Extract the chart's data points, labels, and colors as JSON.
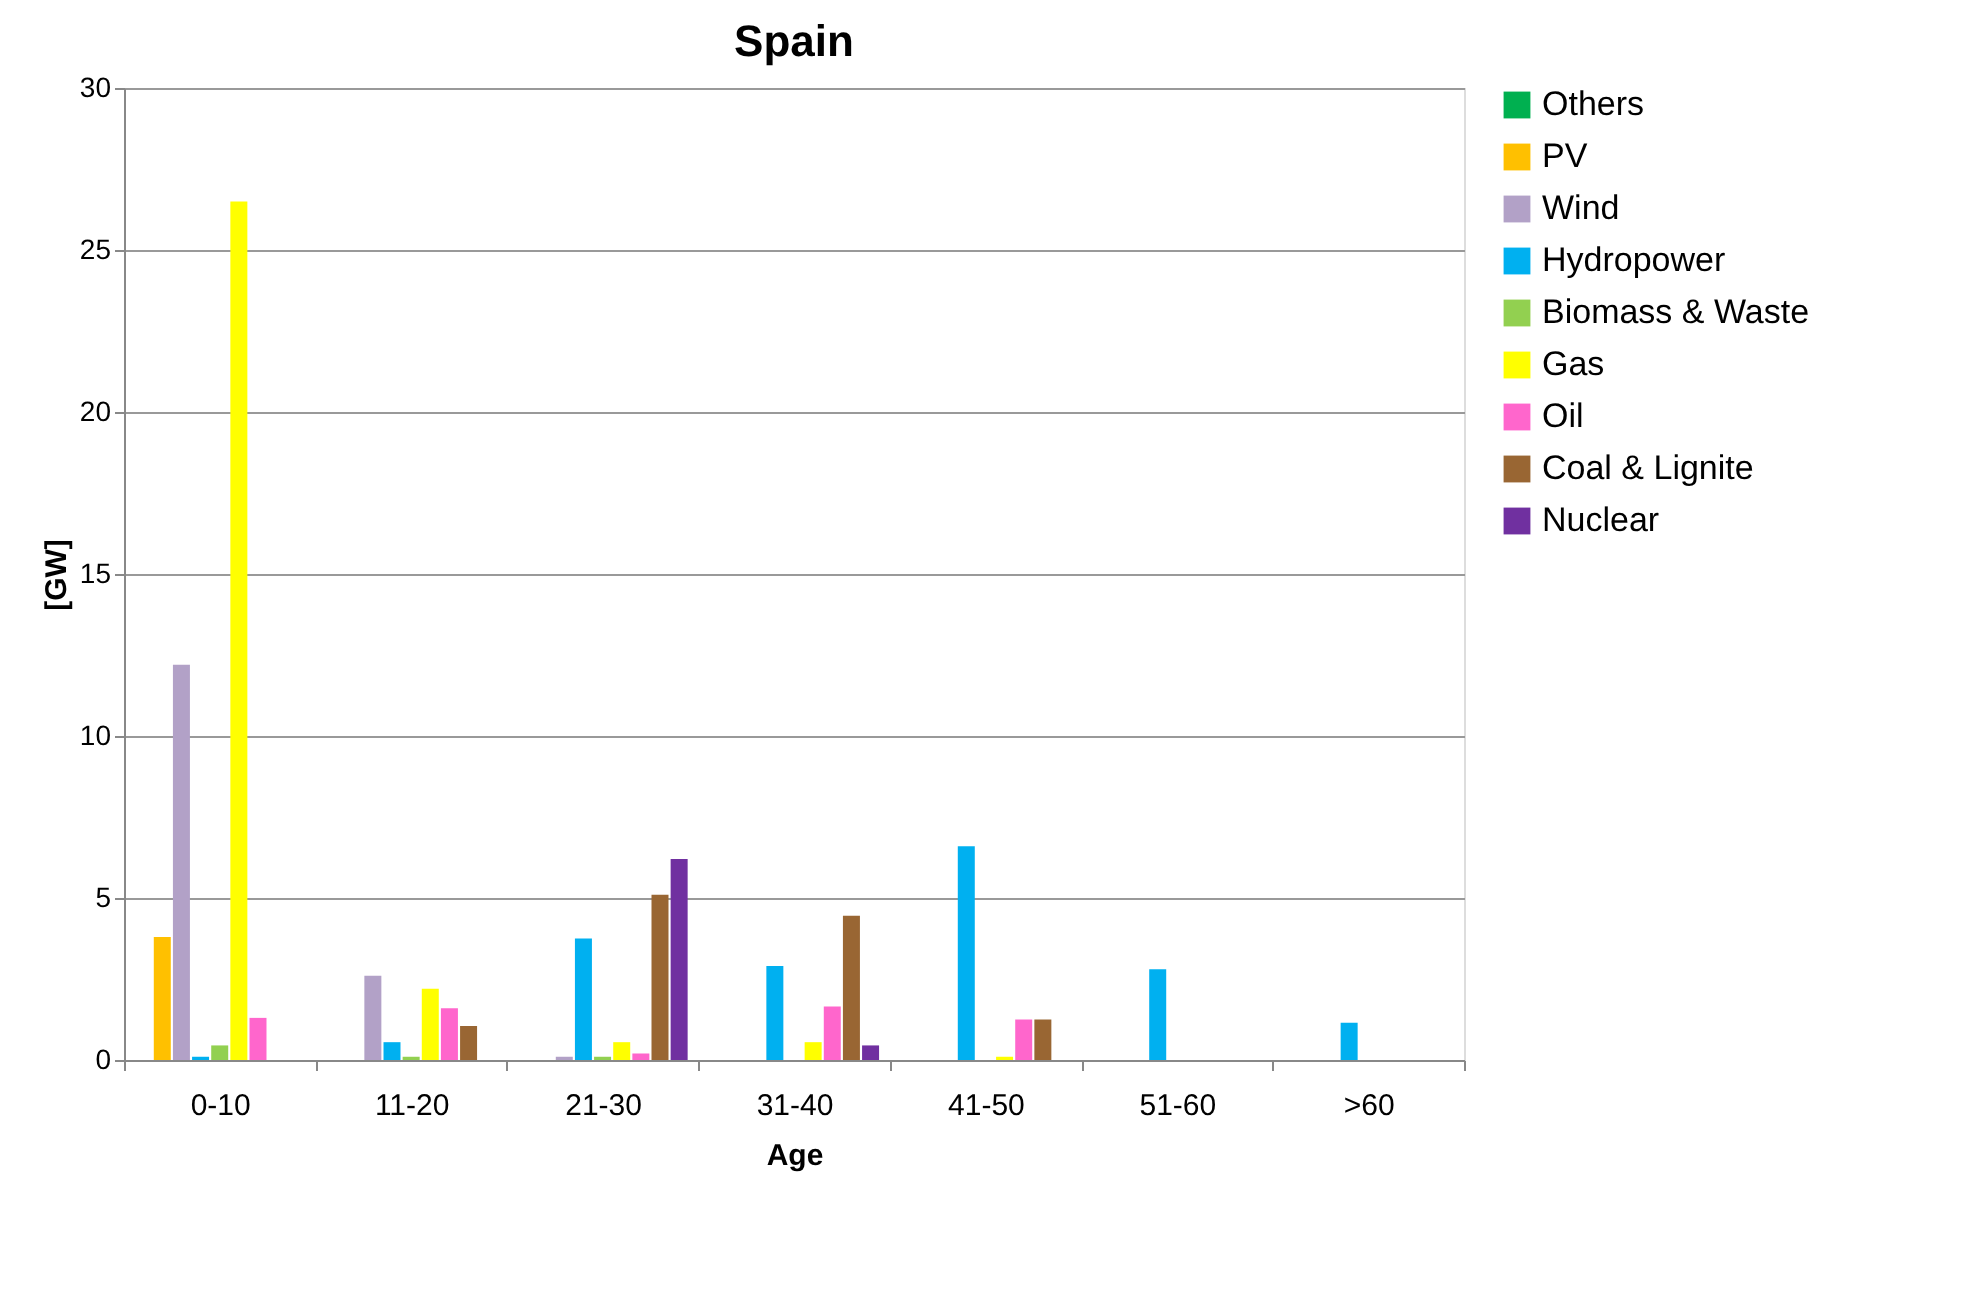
{
  "chart_data": {
    "type": "bar",
    "title": "Spain",
    "xlabel": "Age",
    "ylabel": "[GW]",
    "categories": [
      "0-10",
      "11-20",
      "21-30",
      "31-40",
      "41-50",
      "51-60",
      ">60"
    ],
    "series": [
      {
        "name": "Others",
        "color": "#00b050",
        "values": [
          0,
          0,
          0,
          0,
          0,
          0,
          0
        ]
      },
      {
        "name": "PV",
        "color": "#ffc000",
        "values": [
          3.8,
          0,
          0,
          0,
          0,
          0,
          0
        ]
      },
      {
        "name": "Wind",
        "color": "#b2a1c7",
        "values": [
          12.2,
          2.6,
          0.1,
          0,
          0,
          0,
          0
        ]
      },
      {
        "name": "Hydropower",
        "color": "#00b0f0",
        "values": [
          0.1,
          0.55,
          3.75,
          2.9,
          6.6,
          2.8,
          1.15
        ]
      },
      {
        "name": "Biomass & Waste",
        "color": "#92d050",
        "values": [
          0.45,
          0.1,
          0.1,
          0,
          0,
          0,
          0
        ]
      },
      {
        "name": "Gas",
        "color": "#ffff00",
        "values": [
          26.5,
          2.2,
          0.55,
          0.55,
          0.1,
          0,
          0
        ]
      },
      {
        "name": "Oil",
        "color": "#ff66cc",
        "values": [
          1.3,
          1.6,
          0.2,
          1.65,
          1.25,
          0,
          0
        ]
      },
      {
        "name": "Coal & Lignite",
        "color": "#996633",
        "values": [
          0,
          1.05,
          5.1,
          4.45,
          1.25,
          0,
          0
        ]
      },
      {
        "name": "Nuclear",
        "color": "#7030a0",
        "values": [
          0,
          0,
          6.2,
          0.45,
          0,
          0,
          0
        ]
      }
    ],
    "ylim": [
      0,
      30
    ],
    "yticks": [
      0,
      5,
      10,
      15,
      20,
      25,
      30
    ],
    "grid": "y",
    "legend": "right"
  }
}
